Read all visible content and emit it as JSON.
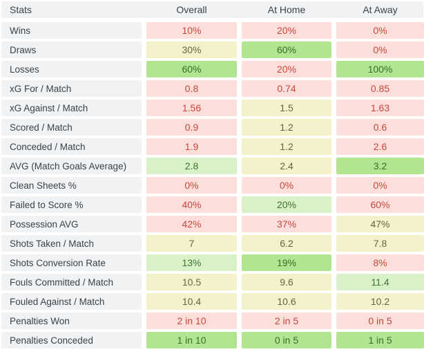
{
  "colors": {
    "page_bg": "#ffffff",
    "label_bg": "#f1f2f4",
    "label_text": "#3a4147",
    "red": {
      "bg": "#fcdfda",
      "text": "#c8473c"
    },
    "yellow": {
      "bg": "#f4f2cb",
      "text": "#63653e"
    },
    "lightgreen": {
      "bg": "#d9f1c6",
      "text": "#3e7330"
    },
    "green": {
      "bg": "#b2e592",
      "text": "#33702a"
    }
  },
  "chart_data": {
    "type": "table",
    "title": "Stats",
    "columns": [
      "Stats",
      "Overall",
      "At Home",
      "At Away"
    ],
    "color_legend": "cell color classes: red = bad, yellow = neutral, lightgreen = good, green = best",
    "rows": [
      {
        "label": "Wins",
        "values": [
          "10%",
          "20%",
          "0%"
        ],
        "colors": [
          "red",
          "red",
          "red"
        ]
      },
      {
        "label": "Draws",
        "values": [
          "30%",
          "60%",
          "0%"
        ],
        "colors": [
          "yellow",
          "green",
          "red"
        ]
      },
      {
        "label": "Losses",
        "values": [
          "60%",
          "20%",
          "100%"
        ],
        "colors": [
          "green",
          "red",
          "green"
        ]
      },
      {
        "label": "xG For / Match",
        "values": [
          "0.8",
          "0.74",
          "0.85"
        ],
        "colors": [
          "red",
          "red",
          "red"
        ]
      },
      {
        "label": "xG Against / Match",
        "values": [
          "1.56",
          "1.5",
          "1.63"
        ],
        "colors": [
          "red",
          "yellow",
          "red"
        ]
      },
      {
        "label": "Scored / Match",
        "values": [
          "0.9",
          "1.2",
          "0.6"
        ],
        "colors": [
          "red",
          "yellow",
          "red"
        ]
      },
      {
        "label": "Conceded / Match",
        "values": [
          "1.9",
          "1.2",
          "2.6"
        ],
        "colors": [
          "red",
          "yellow",
          "red"
        ]
      },
      {
        "label": "AVG (Match Goals Average)",
        "values": [
          "2.8",
          "2.4",
          "3.2"
        ],
        "colors": [
          "lightgreen",
          "yellow",
          "green"
        ]
      },
      {
        "label": "Clean Sheets %",
        "values": [
          "0%",
          "0%",
          "0%"
        ],
        "colors": [
          "red",
          "red",
          "red"
        ]
      },
      {
        "label": "Failed to Score %",
        "values": [
          "40%",
          "20%",
          "60%"
        ],
        "colors": [
          "red",
          "lightgreen",
          "red"
        ]
      },
      {
        "label": "Possession AVG",
        "values": [
          "42%",
          "37%",
          "47%"
        ],
        "colors": [
          "red",
          "red",
          "yellow"
        ]
      },
      {
        "label": "Shots Taken / Match",
        "values": [
          "7",
          "6.2",
          "7.8"
        ],
        "colors": [
          "yellow",
          "yellow",
          "yellow"
        ]
      },
      {
        "label": "Shots Conversion Rate",
        "values": [
          "13%",
          "19%",
          "8%"
        ],
        "colors": [
          "lightgreen",
          "green",
          "red"
        ]
      },
      {
        "label": "Fouls Committed / Match",
        "values": [
          "10.5",
          "9.6",
          "11.4"
        ],
        "colors": [
          "yellow",
          "yellow",
          "lightgreen"
        ]
      },
      {
        "label": "Fouled Against / Match",
        "values": [
          "10.4",
          "10.6",
          "10.2"
        ],
        "colors": [
          "yellow",
          "yellow",
          "yellow"
        ]
      },
      {
        "label": "Penalties Won",
        "values": [
          "2 in 10",
          "2 in 5",
          "0 in 5"
        ],
        "colors": [
          "red",
          "red",
          "red"
        ]
      },
      {
        "label": "Penalties Conceded",
        "values": [
          "1 in 10",
          "0 in 5",
          "1 in 5"
        ],
        "colors": [
          "green",
          "green",
          "green"
        ]
      }
    ]
  }
}
